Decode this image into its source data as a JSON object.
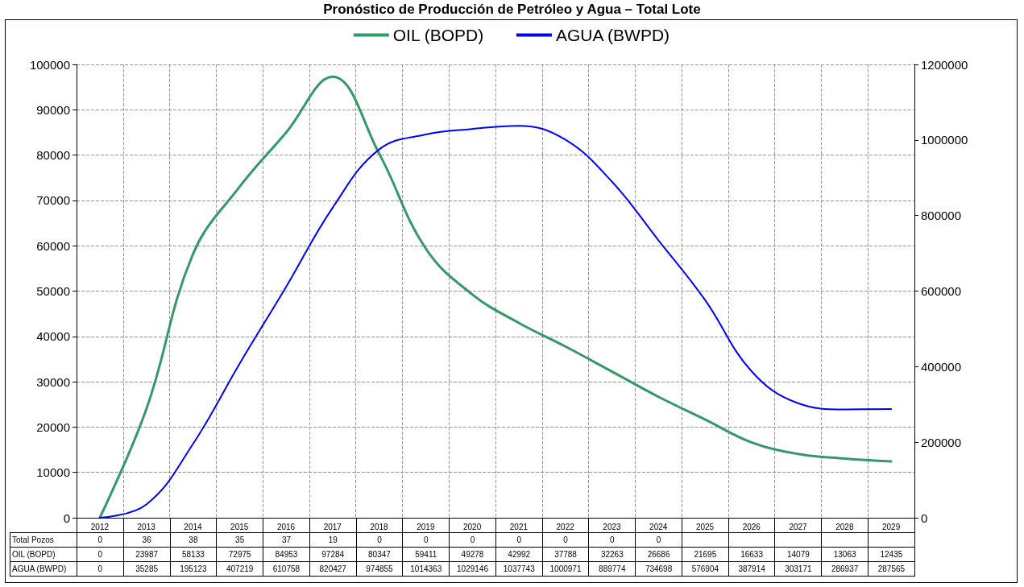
{
  "chart_data": {
    "type": "line",
    "title": "Pronóstico de Producción de Petróleo y Agua – Total Lote",
    "categories": [
      "2012",
      "2013",
      "2014",
      "2015",
      "2016",
      "2017",
      "2018",
      "2019",
      "2020",
      "2021",
      "2022",
      "2023",
      "2024",
      "2025",
      "2026",
      "2027",
      "2028",
      "2029"
    ],
    "annotations": [
      "Total Pozos",
      "0",
      "36",
      "38",
      "35",
      "37",
      "19",
      "0",
      "0",
      "0",
      "0",
      "0",
      "0",
      "0"
    ],
    "series": [
      {
        "name": "OIL (BOPD)",
        "color": "#339966",
        "values": [
          0,
          23987,
          58133,
          72975,
          84953,
          97284,
          80347,
          59411,
          49278,
          42992,
          37788,
          32263,
          26686,
          21695,
          16633,
          14079,
          13063,
          12435
        ]
      },
      {
        "name": "AGUA (BWPD)",
        "color": "#0000ff",
        "axis": "y2",
        "values": [
          0,
          35285,
          195123,
          407219,
          610758,
          820427,
          974855,
          1014363,
          1029146,
          1037743,
          1000971,
          889774,
          734698,
          576904,
          387914,
          303171,
          286937,
          287565
        ]
      }
    ],
    "ylim": [
      0,
      100000
    ],
    "yticks": [
      0,
      10000,
      20000,
      30000,
      40000,
      50000,
      60000,
      70000,
      80000,
      90000,
      100000
    ],
    "y2lim": [
      0,
      1200000
    ],
    "y2ticks": [
      0,
      200000,
      400000,
      600000,
      800000,
      1000000,
      1200000
    ],
    "grid": true,
    "legend": "top",
    "marker": "none",
    "line_style": "solid",
    "data_labels": true
  }
}
